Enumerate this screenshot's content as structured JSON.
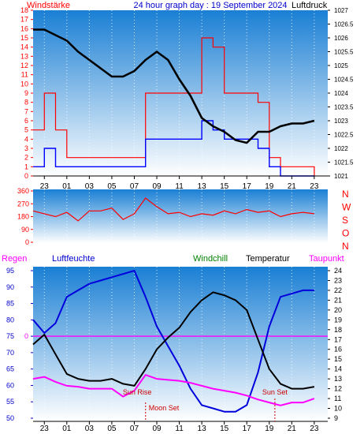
{
  "title": "24 hour graph day : 19 September 2024",
  "colors": {
    "wind_speed": "#ff0000",
    "gust": "#ff0000",
    "wind_avg": "#0000ff",
    "pressure": "#000000",
    "direction": "#ff0000",
    "humidity": "#0000dd",
    "temperature": "#000000",
    "dewpoint": "#ff00ff",
    "windchill": "#008000",
    "rain": "#ff00ff",
    "sun_marker": "#cc0000",
    "plot_top": "#1a7fd4",
    "plot_bottom": "#ffffff"
  },
  "x_ticks": [
    "23",
    "01",
    "03",
    "05",
    "07",
    "09",
    "11",
    "13",
    "15",
    "17",
    "19",
    "21",
    "23"
  ],
  "chart_data": [
    {
      "type": "line",
      "title": "24 hour graph day : 19 September 2024",
      "left_label": "Windstärke",
      "right_label": "Luftdruck",
      "x_hours": [
        22,
        23,
        0,
        1,
        2,
        3,
        4,
        5,
        6,
        7,
        8,
        9,
        10,
        11,
        12,
        13,
        14,
        15,
        16,
        17,
        18,
        19,
        20,
        21,
        22,
        23
      ],
      "ylim_left": [
        0,
        18
      ],
      "yticks_left": [
        0,
        1,
        2,
        3,
        4,
        5,
        6,
        7,
        8,
        9,
        10,
        11,
        12,
        13,
        14,
        15,
        16,
        17,
        18
      ],
      "ylim_right": [
        1021,
        1027
      ],
      "yticks_right": [
        "1021",
        "1021.5",
        "1022",
        "1022.5",
        "1023",
        "1023.5",
        "1024",
        "1024.5",
        "1025",
        "1025.5",
        "1026",
        "1026.5",
        "1027"
      ],
      "series": [
        {
          "axis": "right",
          "values": [
            1026.3,
            1026.3,
            1026.1,
            1025.9,
            1025.5,
            1025.2,
            1024.9,
            1024.6,
            1024.6,
            1024.8,
            1025.2,
            1025.5,
            1025.2,
            1024.5,
            1023.9,
            1023.1,
            1022.8,
            1022.6,
            1022.3,
            1022.2,
            1022.6,
            1022.6,
            1022.8,
            1022.9,
            1022.9,
            1023.0
          ]
        },
        {
          "axis": "left",
          "values": [
            5,
            9,
            5,
            2,
            2,
            2,
            2,
            2,
            2,
            2,
            9,
            9,
            9,
            9,
            9,
            15,
            14,
            9,
            9,
            9,
            8,
            2,
            1,
            1,
            1,
            0
          ]
        },
        {
          "axis": "left",
          "values": [
            1,
            3,
            1,
            1,
            1,
            1,
            1,
            1,
            1,
            1,
            4,
            4,
            4,
            4,
            4,
            6,
            5,
            4,
            4,
            4,
            3,
            1,
            0,
            0,
            0,
            0
          ]
        }
      ]
    },
    {
      "type": "scatter",
      "right_labels": [
        "N",
        "W",
        "S",
        "O",
        "N"
      ],
      "ylim": [
        0,
        360
      ],
      "yticks": [
        0,
        90,
        180,
        270,
        360
      ],
      "x_hours": [
        22,
        23,
        0,
        1,
        2,
        3,
        4,
        5,
        6,
        7,
        8,
        9,
        10,
        11,
        12,
        13,
        14,
        15,
        16,
        17,
        18,
        19,
        20,
        21,
        22,
        23
      ],
      "values": [
        220,
        200,
        180,
        210,
        150,
        220,
        220,
        240,
        160,
        200,
        310,
        250,
        200,
        210,
        180,
        200,
        190,
        220,
        200,
        230,
        210,
        220,
        180,
        200,
        210,
        200
      ]
    },
    {
      "type": "line",
      "legend": [
        "Regen",
        "Luftfeuchte",
        "Windchill",
        "Temperatur",
        "Taupunkt"
      ],
      "left_label": "Regen",
      "ylim_left": [
        50,
        95
      ],
      "yticks_left": [
        50,
        55,
        60,
        65,
        70,
        75,
        80,
        85,
        90,
        95
      ],
      "ylim_right": [
        9,
        24
      ],
      "yticks_right": [
        9,
        10,
        11,
        12,
        13,
        14,
        15,
        16,
        17,
        18,
        19,
        20,
        21,
        22,
        23,
        24
      ],
      "rain_axis_label": "0",
      "rain_axis_at": 75,
      "x_hours": [
        22,
        23,
        0,
        1,
        2,
        3,
        4,
        5,
        6,
        7,
        8,
        9,
        10,
        11,
        12,
        13,
        14,
        15,
        16,
        17,
        18,
        19,
        20,
        21,
        22,
        23
      ],
      "series": [
        {
          "name": "Luftfeuchte",
          "axis": "left",
          "values": [
            80,
            76,
            79,
            87,
            89,
            91,
            92,
            93,
            94,
            95,
            87,
            78,
            72,
            66,
            59,
            54,
            53,
            52,
            52,
            54,
            64,
            78,
            87,
            88,
            89,
            89
          ]
        },
        {
          "name": "Temperatur",
          "axis": "right",
          "values": [
            16.5,
            17.5,
            15.5,
            13.5,
            13.0,
            12.8,
            12.8,
            13.0,
            12.5,
            12.3,
            14.0,
            16.0,
            17.2,
            18.2,
            19.8,
            21.0,
            21.8,
            21.5,
            21.0,
            20.0,
            17.0,
            14.0,
            12.5,
            12.0,
            12.0,
            12.2
          ]
        },
        {
          "name": "Taupunkt",
          "axis": "right",
          "values": [
            13.0,
            13.2,
            12.7,
            12.3,
            12.2,
            12.0,
            12.0,
            12.0,
            11.2,
            11.8,
            13.4,
            13.0,
            12.9,
            12.8,
            12.6,
            12.3,
            12.0,
            11.8,
            11.6,
            11.3,
            10.9,
            10.6,
            10.3,
            10.6,
            10.6,
            11.0
          ]
        }
      ],
      "annotations": [
        {
          "text": "Sun Rise",
          "hour": 7.4
        },
        {
          "text": "Moon Set",
          "hour": 8.0
        },
        {
          "text": "Sun Set",
          "hour": 19.5
        }
      ]
    }
  ]
}
